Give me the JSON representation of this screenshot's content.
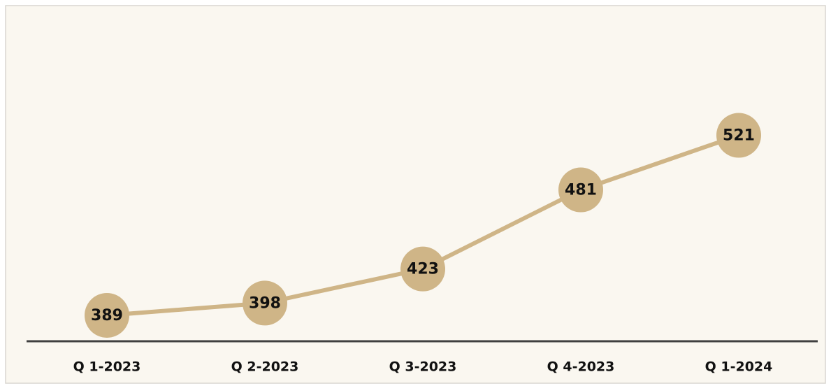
{
  "chart_data": {
    "type": "line",
    "categories": [
      "Q 1-2023",
      "Q 2-2023",
      "Q 3-2023",
      "Q 4-2023",
      "Q 1-2024"
    ],
    "values": [
      389,
      398,
      423,
      481,
      521
    ],
    "color": "#cfb587",
    "ylim": [
      370,
      610
    ]
  }
}
